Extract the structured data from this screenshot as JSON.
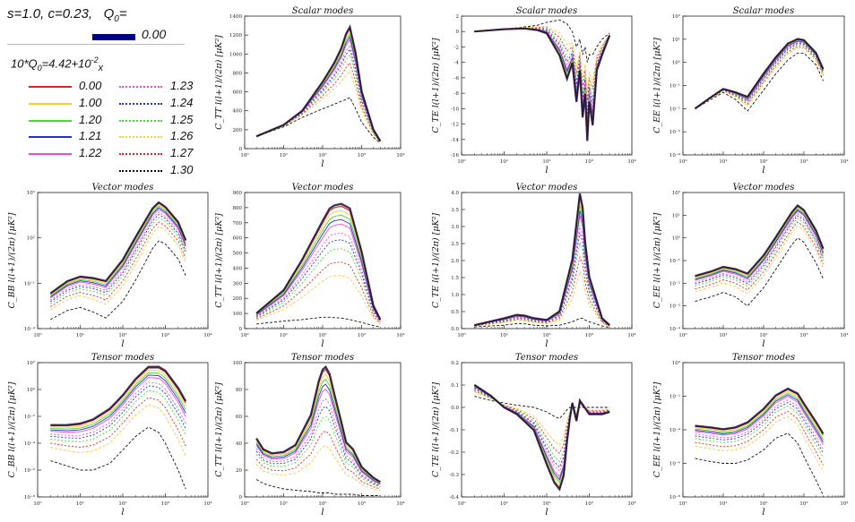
{
  "legend": {
    "header": "s=1.0, c=0.23,",
    "q0_symbol": "Q",
    "q0_sub": "0",
    "q0_eq": "=",
    "q0_value": "0.00",
    "formula_pre": "10*Q",
    "formula_sub": "0",
    "formula_mid": "=4.42+10",
    "formula_sup": "-2",
    "formula_x": "x",
    "entries": [
      {
        "label": "0.00",
        "color": "#e8231f",
        "style": "solid"
      },
      {
        "label": "1.00",
        "color": "#f0cd3a",
        "style": "solid"
      },
      {
        "label": "1.20",
        "color": "#4dd43a",
        "style": "solid"
      },
      {
        "label": "1.21",
        "color": "#2333c4",
        "style": "solid"
      },
      {
        "label": "1.22",
        "color": "#e84ce0",
        "style": "solid"
      },
      {
        "label": "1.23",
        "color": "#e84ce0",
        "style": "dotted"
      },
      {
        "label": "1.24",
        "color": "#2333c4",
        "style": "dotted"
      },
      {
        "label": "1.25",
        "color": "#4dd43a",
        "style": "dotted"
      },
      {
        "label": "1.26",
        "color": "#f0cd3a",
        "style": "dotted"
      },
      {
        "label": "1.27",
        "color": "#e8231f",
        "style": "dotted"
      },
      {
        "label": "1.30",
        "color": "#111111",
        "style": "dotted"
      }
    ]
  },
  "chart_data": [
    {
      "id": "scalar-tt",
      "type": "line",
      "title": "Scalar modes",
      "ylabel": "C_TT l(l+1)/(2π) [μK²]",
      "xlabel": "l",
      "xscale": "log",
      "yscale": "linear",
      "ylim": [
        0,
        1400
      ],
      "xticks": [
        "10⁰",
        "10¹",
        "10²",
        "10³",
        "10⁴"
      ],
      "yticks": [
        "0",
        "200",
        "400",
        "600",
        "800",
        "1000",
        "1200",
        "1400"
      ],
      "x": [
        2,
        10,
        30,
        100,
        200,
        300,
        400,
        500,
        700,
        1000,
        2000,
        3000
      ],
      "base": [
        130,
        250,
        400,
        700,
        900,
        1050,
        1200,
        1270,
        1000,
        600,
        200,
        80
      ],
      "bottom": [
        130,
        230,
        330,
        420,
        470,
        500,
        520,
        540,
        420,
        280,
        120,
        60
      ]
    },
    {
      "id": "scalar-te",
      "type": "line",
      "title": "Scalar modes",
      "ylabel": "C_TE l(l+1)/(2π) [μK²]",
      "xlabel": "l",
      "xscale": "log",
      "yscale": "linear",
      "ylim": [
        -16,
        2
      ],
      "xticks": [
        "10⁰",
        "10¹",
        "10²",
        "10³",
        "10⁴"
      ],
      "yticks": [
        "-16",
        "-14",
        "-12",
        "-10",
        "-8",
        "-6",
        "-4",
        "-2",
        "0",
        "2"
      ],
      "x": [
        2,
        10,
        30,
        60,
        100,
        200,
        300,
        400,
        500,
        600,
        700,
        800,
        900,
        1000,
        1200,
        1500,
        2000,
        3000
      ],
      "base": [
        0,
        0.3,
        0.4,
        0.2,
        -0.2,
        -3,
        -6,
        -4,
        -9,
        -5,
        -11,
        -8,
        -14,
        -9,
        -12,
        -5,
        -3,
        -0.5
      ],
      "top": [
        0,
        0.3,
        0.6,
        0.8,
        1.2,
        1.5,
        1,
        0,
        -2,
        -1,
        -3,
        -2,
        -4,
        -3,
        -3,
        -2,
        -1,
        -0.2
      ]
    },
    {
      "id": "scalar-ee",
      "type": "line",
      "title": "Scalar modes",
      "ylabel": "C_EE l(l+1)/(2π) [μK²]",
      "xlabel": "l",
      "xscale": "log",
      "yscale": "log",
      "ylim": [
        -4,
        2
      ],
      "xticks": [
        "10⁰",
        "10¹",
        "10²",
        "10³",
        "10⁴"
      ],
      "yticks": [
        "10⁻⁴",
        "10⁻³",
        "10⁻²",
        "10⁻¹",
        "10⁰",
        "10¹",
        "10²"
      ],
      "x": [
        2,
        5,
        10,
        20,
        40,
        100,
        200,
        400,
        700,
        1000,
        2000,
        3000
      ],
      "base": [
        -2.0,
        -1.5,
        -1.15,
        -1.3,
        -1.5,
        -0.5,
        0.2,
        0.8,
        1.0,
        0.95,
        0.4,
        -0.3
      ],
      "bottom": [
        -2.0,
        -1.6,
        -1.3,
        -1.6,
        -2.1,
        -1.2,
        -0.5,
        0.1,
        0.4,
        0.4,
        -0.1,
        -0.8
      ]
    },
    {
      "id": "vector-bb",
      "type": "line",
      "title": "Vector modes",
      "ylabel": "C_BB l(l+1)/(2π) [μK²]",
      "xlabel": "l",
      "xscale": "log",
      "yscale": "log",
      "ylim": [
        -4,
        5
      ],
      "xticks": [
        "10⁰",
        "10¹",
        "10²",
        "10³",
        "10⁴"
      ],
      "yticks": [
        "10⁻⁴",
        "10⁻¹",
        "10²",
        "10⁵"
      ],
      "x": [
        2,
        5,
        10,
        20,
        40,
        100,
        200,
        500,
        700,
        1000,
        2000,
        3000
      ],
      "base": [
        -1.7,
        -0.9,
        -0.6,
        -0.7,
        -0.9,
        0.5,
        2.0,
        3.9,
        4.3,
        4.0,
        3.0,
        1.8
      ],
      "bottom": [
        -3.4,
        -2.8,
        -2.6,
        -2.9,
        -3.3,
        -2.2,
        -0.8,
        1.3,
        1.8,
        1.6,
        0.6,
        -0.5
      ]
    },
    {
      "id": "vector-tt",
      "type": "line",
      "title": "Vector modes",
      "ylabel": "C_TT l(l+1)/(2π) [μK²]",
      "xlabel": "l",
      "xscale": "log",
      "yscale": "linear",
      "ylim": [
        0,
        900
      ],
      "xticks": [
        "10⁰",
        "10¹",
        "10²",
        "10³",
        "10⁴"
      ],
      "yticks": [
        "0",
        "100",
        "200",
        "300",
        "400",
        "500",
        "600",
        "700",
        "800",
        "900"
      ],
      "x": [
        2,
        10,
        30,
        100,
        150,
        200,
        300,
        500,
        1000,
        2000,
        3000
      ],
      "base": [
        100,
        250,
        450,
        700,
        780,
        800,
        810,
        780,
        500,
        150,
        60
      ],
      "bottom": [
        30,
        50,
        60,
        75,
        75,
        72,
        70,
        60,
        40,
        20,
        10
      ]
    },
    {
      "id": "vector-te",
      "type": "line",
      "title": "Vector modes",
      "ylabel": "C_TE l(l+1)/(2π) [μK²]",
      "xlabel": "l",
      "xscale": "log",
      "yscale": "linear",
      "ylim": [
        0,
        4
      ],
      "xticks": [
        "10⁰",
        "10¹",
        "10²",
        "10³",
        "10⁴"
      ],
      "yticks": [
        "0.0",
        "0.5",
        "1.0",
        "1.5",
        "2.0",
        "2.5",
        "3.0",
        "3.5",
        "4.0"
      ],
      "x": [
        2,
        10,
        20,
        30,
        50,
        100,
        200,
        400,
        600,
        700,
        800,
        1000,
        2000,
        3000
      ],
      "base": [
        0.1,
        0.3,
        0.4,
        0.38,
        0.3,
        0.25,
        0.5,
        2.0,
        3.9,
        3.5,
        2.5,
        1.5,
        0.3,
        0.1
      ],
      "bottom": [
        0.05,
        0.1,
        0.15,
        0.14,
        0.1,
        0.08,
        0.1,
        0.2,
        0.3,
        0.3,
        0.25,
        0.2,
        0.08,
        0.03
      ]
    },
    {
      "id": "vector-ee",
      "type": "line",
      "title": "Vector modes",
      "ylabel": "C_EE l(l+1)/(2π) [μK²]",
      "xlabel": "l",
      "xscale": "log",
      "yscale": "log",
      "ylim": [
        -4,
        2
      ],
      "xticks": [
        "10⁰",
        "10¹",
        "10²",
        "10³",
        "10⁴"
      ],
      "yticks": [
        "10⁻⁴",
        "10⁻³",
        "10⁻²",
        "10⁻¹",
        "10⁰",
        "10¹",
        "10²"
      ],
      "x": [
        2,
        5,
        10,
        20,
        40,
        100,
        200,
        500,
        700,
        1000,
        2000,
        3000
      ],
      "base": [
        -1.7,
        -1.5,
        -1.3,
        -1.4,
        -1.6,
        -0.8,
        0.0,
        1.1,
        1.4,
        1.2,
        0.3,
        -0.5
      ],
      "bottom": [
        -2.8,
        -2.6,
        -2.4,
        -2.6,
        -3.0,
        -2.2,
        -1.4,
        -0.3,
        0.0,
        -0.2,
        -1.1,
        -1.8
      ]
    },
    {
      "id": "tensor-bb",
      "type": "line",
      "title": "Tensor modes",
      "ylabel": "C_BB l(l+1)/(2π) [μK²]",
      "xlabel": "l",
      "xscale": "log",
      "yscale": "log",
      "ylim": [
        -8,
        2
      ],
      "xticks": [
        "10⁰",
        "10¹",
        "10²",
        "10³",
        "10⁴"
      ],
      "yticks": [
        "10⁻⁸",
        "10⁻⁶",
        "10⁻⁴",
        "10⁻²",
        "10⁰",
        "10²"
      ],
      "x": [
        2,
        5,
        10,
        20,
        50,
        100,
        200,
        400,
        700,
        1000,
        2000,
        3000
      ],
      "base": [
        -2.7,
        -2.7,
        -2.6,
        -2.3,
        -1.5,
        -0.5,
        0.7,
        1.6,
        1.6,
        1.3,
        0.0,
        -1.0
      ],
      "bottom": [
        -5.3,
        -5.7,
        -6.0,
        -6.0,
        -5.5,
        -4.5,
        -3.5,
        -2.8,
        -3.2,
        -4.0,
        -6.0,
        -7.4
      ]
    },
    {
      "id": "tensor-tt",
      "type": "line",
      "title": "Tensor modes",
      "ylabel": "C_TT l(l+1)/(2π) [μK²]",
      "xlabel": "l",
      "xscale": "log",
      "yscale": "linear",
      "ylim": [
        0,
        100
      ],
      "xticks": [
        "10⁰",
        "10¹",
        "10²",
        "10³",
        "10⁴"
      ],
      "yticks": [
        "0",
        "20",
        "40",
        "60",
        "80",
        "100"
      ],
      "x": [
        2,
        3,
        5,
        10,
        20,
        50,
        80,
        100,
        120,
        150,
        200,
        300,
        400,
        600,
        1000,
        2000,
        3000
      ],
      "base": [
        43,
        35,
        32,
        33,
        38,
        60,
        85,
        93,
        95,
        90,
        75,
        55,
        40,
        35,
        22,
        14,
        11
      ],
      "bottom": [
        13,
        10,
        8,
        6,
        5,
        4,
        3,
        3,
        3,
        3,
        2,
        2,
        2,
        2,
        1,
        1,
        1
      ]
    },
    {
      "id": "tensor-te",
      "type": "line",
      "title": "Tensor modes",
      "ylabel": "C_TE l(l+1)/(2π) [μK²]",
      "xlabel": "l",
      "xscale": "log",
      "yscale": "linear",
      "ylim": [
        -0.4,
        0.2
      ],
      "xticks": [
        "10⁰",
        "10¹",
        "10²",
        "10³",
        "10⁴"
      ],
      "yticks": [
        "-0.4",
        "-0.3",
        "-0.2",
        "-0.1",
        "0.0",
        "0.1",
        "0.2"
      ],
      "x": [
        2,
        5,
        10,
        20,
        50,
        100,
        150,
        200,
        250,
        300,
        350,
        400,
        500,
        600,
        1000,
        2000,
        3000
      ],
      "base": [
        0.1,
        0.05,
        0.0,
        -0.03,
        -0.1,
        -0.25,
        -0.33,
        -0.36,
        -0.3,
        -0.15,
        -0.05,
        0.02,
        -0.06,
        0.03,
        -0.03,
        -0.03,
        -0.02
      ],
      "top": [
        0.05,
        0.03,
        0.02,
        0.01,
        0.0,
        -0.02,
        -0.04,
        -0.05,
        -0.03,
        -0.01,
        0.0,
        0.0,
        0.0,
        0.0,
        0.0,
        0.0,
        0.0
      ]
    },
    {
      "id": "tensor-ee",
      "type": "line",
      "title": "Tensor modes",
      "ylabel": "C_EE l(l+1)/(2π) [μK²]",
      "xlabel": "l",
      "xscale": "log",
      "yscale": "log",
      "ylim": [
        -8,
        0
      ],
      "xticks": [
        "10⁰",
        "10¹",
        "10²",
        "10³",
        "10⁴"
      ],
      "yticks": [
        "10⁻⁸",
        "10⁻⁶",
        "10⁻⁴",
        "10⁻²",
        "10⁰"
      ],
      "x": [
        2,
        5,
        10,
        20,
        40,
        100,
        200,
        400,
        700,
        1000,
        2000,
        3000
      ],
      "base": [
        -3.8,
        -3.9,
        -4.0,
        -3.9,
        -3.6,
        -2.8,
        -2.0,
        -1.6,
        -1.9,
        -2.5,
        -3.6,
        -4.3
      ],
      "bottom": [
        -5.7,
        -5.9,
        -6.0,
        -6.0,
        -5.8,
        -5.2,
        -4.5,
        -4.2,
        -4.8,
        -5.6,
        -7.0,
        -7.9
      ]
    }
  ]
}
